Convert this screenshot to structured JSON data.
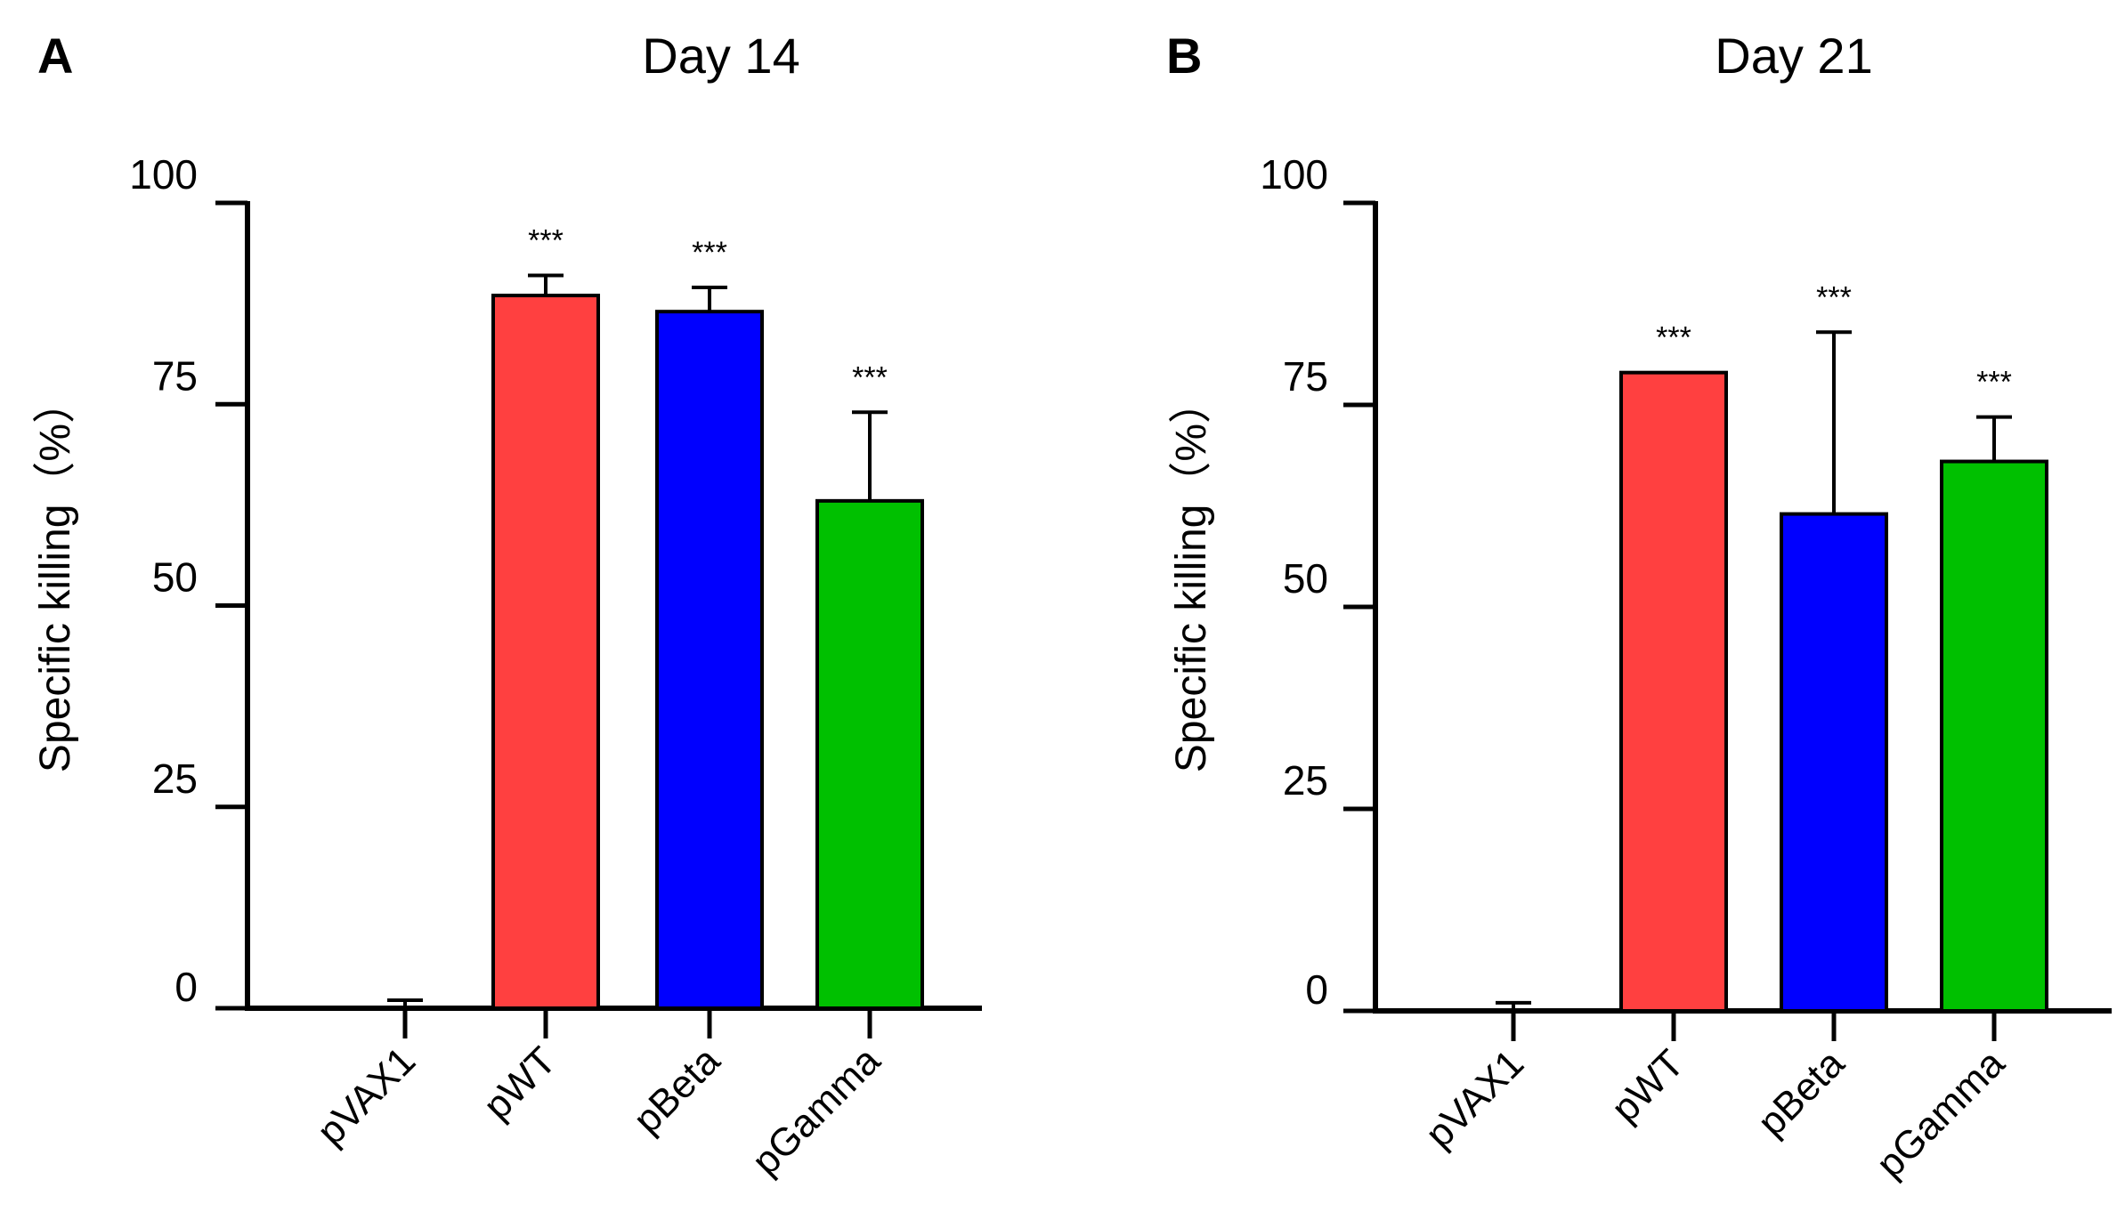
{
  "chart_data": [
    {
      "type": "bar",
      "panel_label": "A",
      "title": "Day 14",
      "ylabel": "Specific killing（%）",
      "xlabel": "",
      "ylim": [
        0,
        100
      ],
      "yticks": [
        0,
        25,
        50,
        75,
        100
      ],
      "ytick_labels": [
        "0",
        "25",
        "50",
        "75",
        "100"
      ],
      "categories": [
        "pVAX1",
        "pWT",
        "pBeta",
        "pGamma"
      ],
      "values": [
        0,
        88.5,
        86.5,
        63
      ],
      "error_upper": [
        1,
        91,
        89.5,
        74
      ],
      "colors": [
        "#ffffff",
        "#ff4040",
        "#0000ff",
        "#00c000"
      ],
      "annotations": [
        "",
        "***",
        "***",
        "***"
      ],
      "grid": false
    },
    {
      "type": "bar",
      "panel_label": "B",
      "title": "Day 21",
      "ylabel": "Specific killing（%）",
      "xlabel": "",
      "ylim": [
        0,
        100
      ],
      "yticks": [
        0,
        25,
        50,
        75,
        100
      ],
      "ytick_labels": [
        "0",
        "25",
        "50",
        "75",
        "100"
      ],
      "categories": [
        "pVAX1",
        "pWT",
        "pBeta",
        "pGamma"
      ],
      "values": [
        0,
        79,
        61.5,
        68
      ],
      "error_upper": [
        1,
        79,
        84,
        73.5
      ],
      "colors": [
        "#ffffff",
        "#ff4040",
        "#0000ff",
        "#00c000"
      ],
      "annotations": [
        "",
        "***",
        "***",
        "***"
      ],
      "grid": false
    }
  ]
}
